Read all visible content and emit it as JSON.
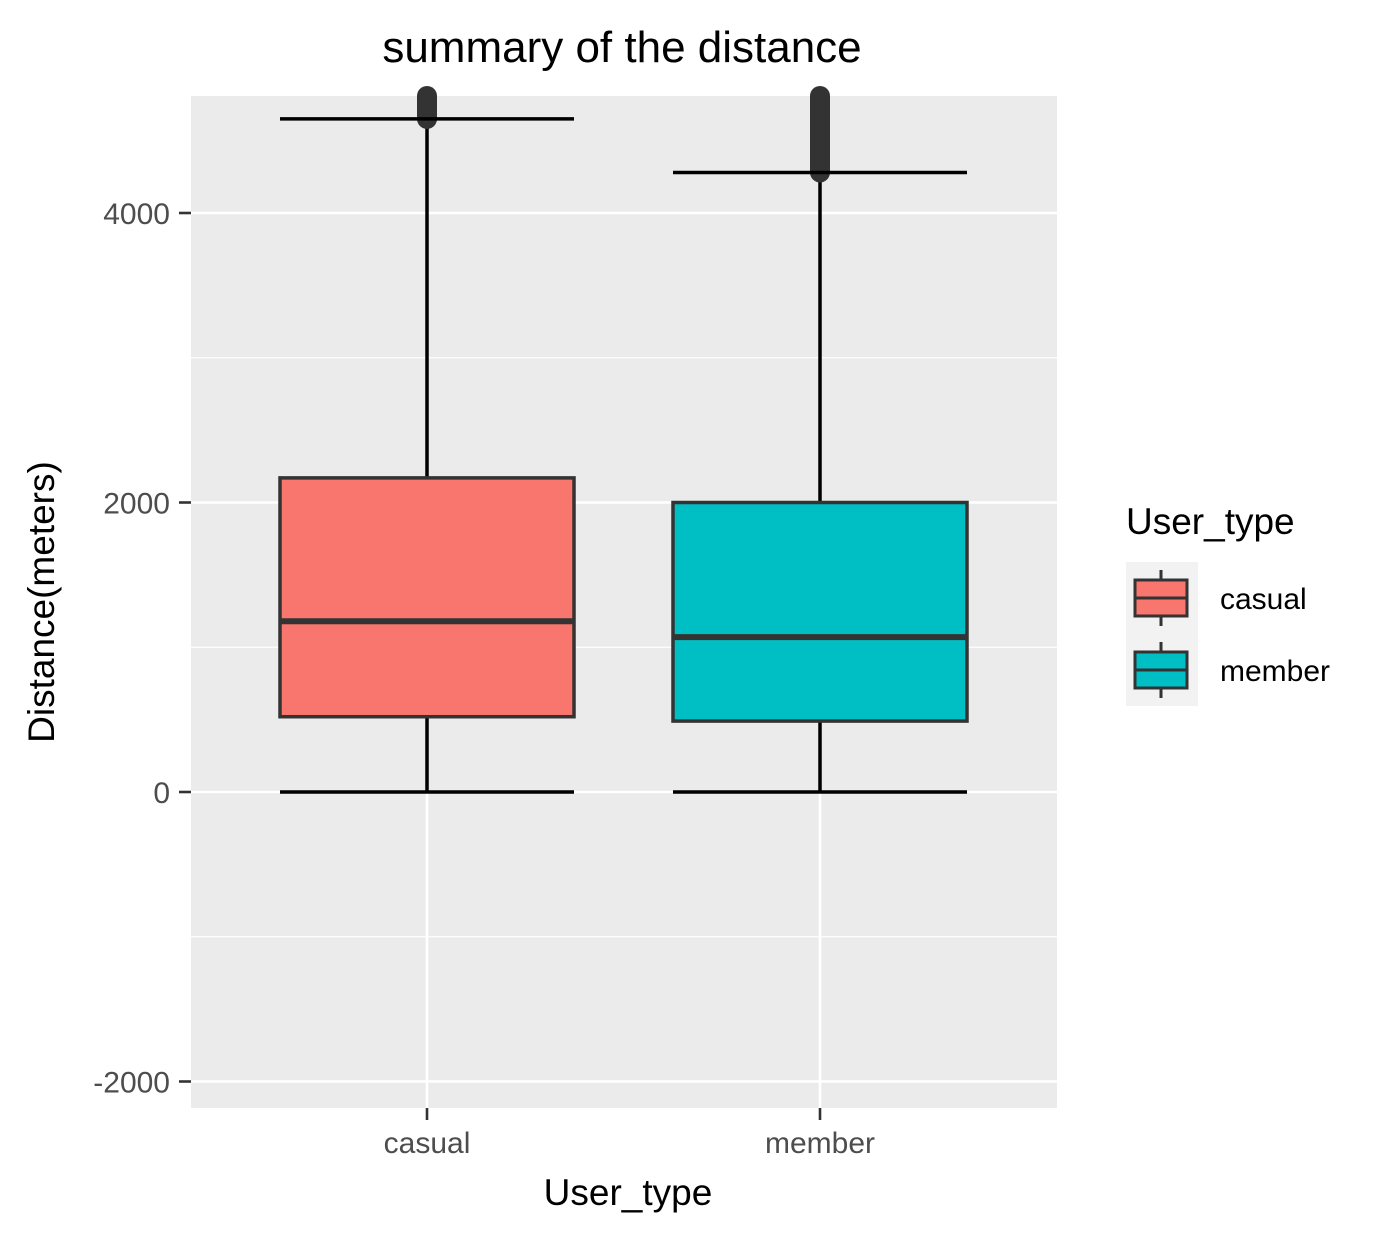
{
  "chart_data": {
    "type": "box",
    "title": "summary of the distance",
    "xlabel": "User_type",
    "ylabel": "Distance(meters)",
    "categories": [
      "casual",
      "member"
    ],
    "ylim": [
      -2180,
      4830
    ],
    "yticks": [
      -2000,
      0,
      2000,
      4000
    ],
    "grid": true,
    "legend": {
      "title": "User_type",
      "position": "right",
      "entries": [
        "casual",
        "member"
      ]
    },
    "series": [
      {
        "category": "casual",
        "color": "#F8766D",
        "whisker_low": 0,
        "q1": 520,
        "median": 1180,
        "q3": 2170,
        "whisker_high": 4650,
        "outlier_min": 4650,
        "outlier_max": 4830
      },
      {
        "category": "member",
        "color": "#00BFC4",
        "whisker_low": 0,
        "q1": 490,
        "median": 1070,
        "q3": 2000,
        "whisker_high": 4280,
        "outlier_min": 4280,
        "outlier_max": 4830
      }
    ]
  }
}
